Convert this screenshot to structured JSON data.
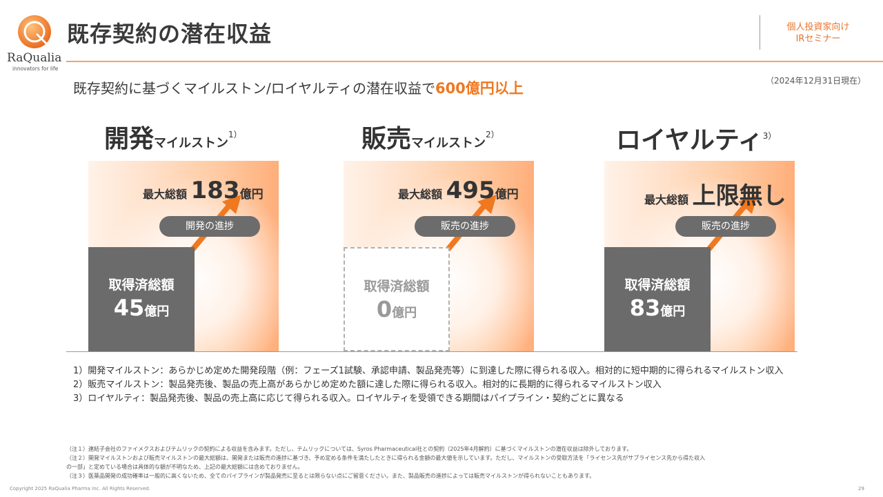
{
  "brand": {
    "name": "RaQualia",
    "tagline": "innovators for life",
    "colors": {
      "accent": "#f07820",
      "gray": "#6b6b6b"
    }
  },
  "page_title": "既存契約の潜在収益",
  "audience": [
    "個人投資家向け",
    "IRセミナー"
  ],
  "as_of": "（2024年12月31日現在）",
  "subtitle": {
    "text": "既存契約に基づくマイルストン/ロイヤルティの潜在収益で",
    "highlight": "600億円以上"
  },
  "columns": [
    {
      "title_main": "開発",
      "title_sub": "マイルストン",
      "note": "1）",
      "max_label": "最大総額",
      "max_value": "183",
      "max_unit": "億円",
      "pill": "開発の進捗",
      "acquired_label": "取得済総額",
      "acquired_value": "45",
      "acquired_unit": "億円"
    },
    {
      "title_main": "販売",
      "title_sub": "マイルストン",
      "note": "2）",
      "max_label": "最大総額",
      "max_value": "495",
      "max_unit": "億円",
      "pill": "販売の進捗",
      "acquired_label": "取得済総額",
      "acquired_value": "0",
      "acquired_unit": "億円"
    },
    {
      "title_main": "ロイヤルティ",
      "title_sub": "",
      "note": "3）",
      "max_label": "最大総額",
      "max_value": "上限無し",
      "max_unit": "",
      "pill": "販売の進捗",
      "acquired_label": "取得済総額",
      "acquired_value": "83",
      "acquired_unit": "億円"
    }
  ],
  "notes": [
    "1）開発マイルストン：あらかじめ定めた開発段階（例：フェーズ1試験、承認申請、製品発売等）に到達した際に得られる収入。相対的に短中期的に得られるマイルストン収入",
    "2）販売マイルストン：製品発売後、製品の売上高があらかじめ定めた額に達した際に得られる収入。相対的に長期的に得られるマイルストン収入",
    "3）ロイヤルティ：製品発売後、製品の売上高に応じて得られる収入。ロイヤルティを受領できる期間はパイプライン・契約ごとに異なる"
  ],
  "fine_print": [
    "（注１）連結子会社のファイメクスおよびテムリックの契約による収益を含みます。ただし、テムリックについては、Syros Pharmaceutical社との契約（2025年4月解約）に基づくマイルストンの潜在収益は除外しております。",
    "（注２）開発マイルストンおよび販売マイルストンの最大総額は、開発または販売の進捗に基づき、予め定める条件を満たしたときに得られる金額の最大値を示しています。ただし、マイルストンの受取方法を「ライセンス先がサブライセンス先から得た収入",
    "の一部」と定めている場合は具体的な額が不明なため、上記の最大総額には含めておりません。",
    "（注３）医薬品開発の成功確率は一般的に高くないため、全てのパイプラインが製品発売に至るとは限らない点にご留意ください。また、製品販売の進捗によっては販売マイルストンが得られないこともあります。"
  ],
  "copyright": "Copyright 2025 RaQualia Pharma Inc. All Rights Reserved.",
  "page_number": "29"
}
